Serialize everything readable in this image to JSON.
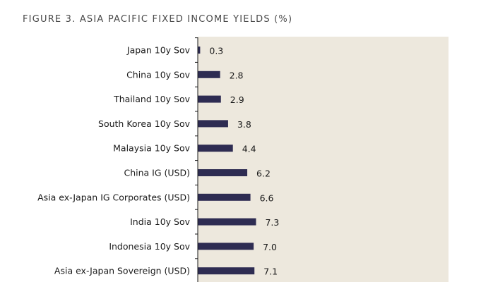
{
  "figure": {
    "title": "FIGURE 3. ASIA PACIFIC FIXED INCOME YIELDS (%)"
  },
  "chart_data": {
    "type": "bar",
    "orientation": "horizontal",
    "title": "FIGURE 3. ASIA PACIFIC FIXED INCOME YIELDS (%)",
    "categories": [
      "Japan 10y Sov",
      "China 10y Sov",
      "Thailand 10y Sov",
      "South Korea 10y Sov",
      "Malaysia 10y Sov",
      "China IG (USD)",
      "Asia ex-Japan IG Corporates (USD)",
      "India 10y Sov",
      "Indonesia 10y Sov",
      "Asia ex-Japan Sovereign (USD)"
    ],
    "values": [
      0.3,
      2.8,
      2.9,
      3.8,
      4.4,
      6.2,
      6.6,
      7.3,
      7.0,
      7.1
    ],
    "value_labels": [
      "0.3",
      "2.8",
      "2.9",
      "3.8",
      "4.4",
      "6.2",
      "6.6",
      "7.3",
      "7.0",
      "7.1"
    ],
    "xlim": [
      0,
      32
    ],
    "grid": false,
    "bar_color": "#2e2c52",
    "plot_background": "#ede8dd"
  }
}
